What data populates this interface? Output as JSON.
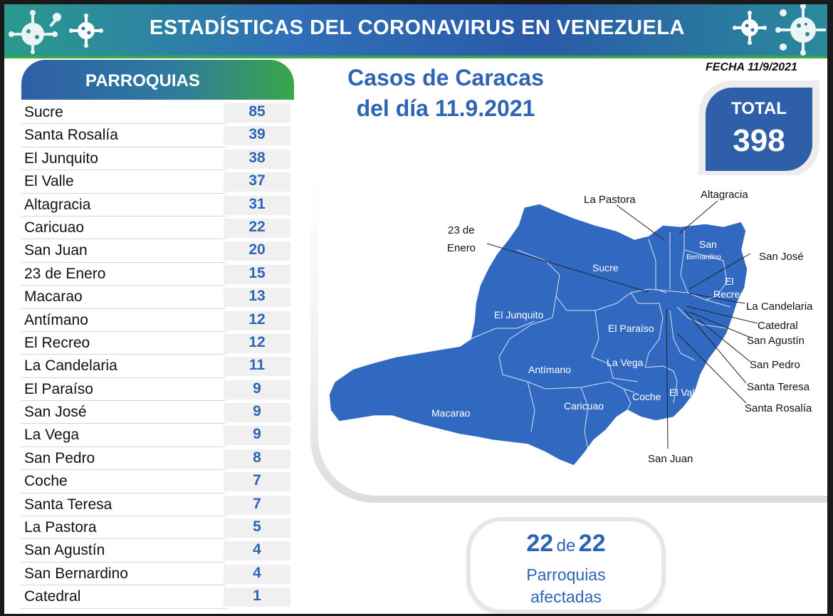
{
  "header": {
    "title": "ESTADÍSTICAS DEL CORONAVIRUS EN VENEZUELA"
  },
  "parroquias": {
    "title": "PARROQUIAS",
    "rows": [
      {
        "name": "Sucre",
        "value": "85"
      },
      {
        "name": "Santa Rosalía",
        "value": "39"
      },
      {
        "name": "El Junquito",
        "value": "38"
      },
      {
        "name": "El Valle",
        "value": "37"
      },
      {
        "name": "Altagracia",
        "value": "31"
      },
      {
        "name": "Caricuao",
        "value": "22"
      },
      {
        "name": "San Juan",
        "value": "20"
      },
      {
        "name": "23 de Enero",
        "value": "15"
      },
      {
        "name": "Macarao",
        "value": "13"
      },
      {
        "name": "Antímano",
        "value": "12"
      },
      {
        "name": "El Recreo",
        "value": "12"
      },
      {
        "name": "La Candelaria",
        "value": "11"
      },
      {
        "name": "El Paraíso",
        "value": "9"
      },
      {
        "name": "San José",
        "value": "9"
      },
      {
        "name": "La Vega",
        "value": "9"
      },
      {
        "name": "San Pedro",
        "value": "8"
      },
      {
        "name": "Coche",
        "value": "7"
      },
      {
        "name": "Santa Teresa",
        "value": "7"
      },
      {
        "name": "La Pastora",
        "value": "5"
      },
      {
        "name": "San Agustín",
        "value": "4"
      },
      {
        "name": "San Bernardino",
        "value": "4"
      },
      {
        "name": "Catedral",
        "value": "1"
      }
    ]
  },
  "casos": {
    "line1": "Casos de Caracas",
    "line2": "del día 11.9.2021"
  },
  "fecha": "FECHA 11/9/2021",
  "total": {
    "label": "TOTAL",
    "value": "398"
  },
  "map": {
    "inside_labels": {
      "sucre": "Sucre",
      "el_junquito": "El Junquito",
      "el_paraiso": "El Paraíso",
      "la_vega": "La Vega",
      "antimano": "Antímano",
      "caricuao": "Caricuao",
      "macarao": "Macarao",
      "coche": "Coche",
      "el_valle": "El Valle",
      "san": "San",
      "bernardino": "Bernardino",
      "el": "El",
      "recreo": "Recreo"
    },
    "callouts": {
      "la_pastora": "La Pastora",
      "altagracia": "Altagracia",
      "enero_1": "23 de",
      "enero_2": "Enero",
      "san_jose": "San José",
      "la_candelaria": "La Candelaria",
      "catedral": "Catedral",
      "san_agustin": "San Agustín",
      "san_pedro": "San Pedro",
      "santa_teresa": "Santa Teresa",
      "santa_rosalia": "Santa Rosalía",
      "san_juan": "San Juan"
    },
    "fill_color": "#3269c0"
  },
  "afectadas": {
    "num": "22",
    "de": "de",
    "total": "22",
    "line2": "Parroquias",
    "line3": "afectadas"
  },
  "colors": {
    "brand_blue": "#2d65b4",
    "green": "#3aa64a"
  }
}
